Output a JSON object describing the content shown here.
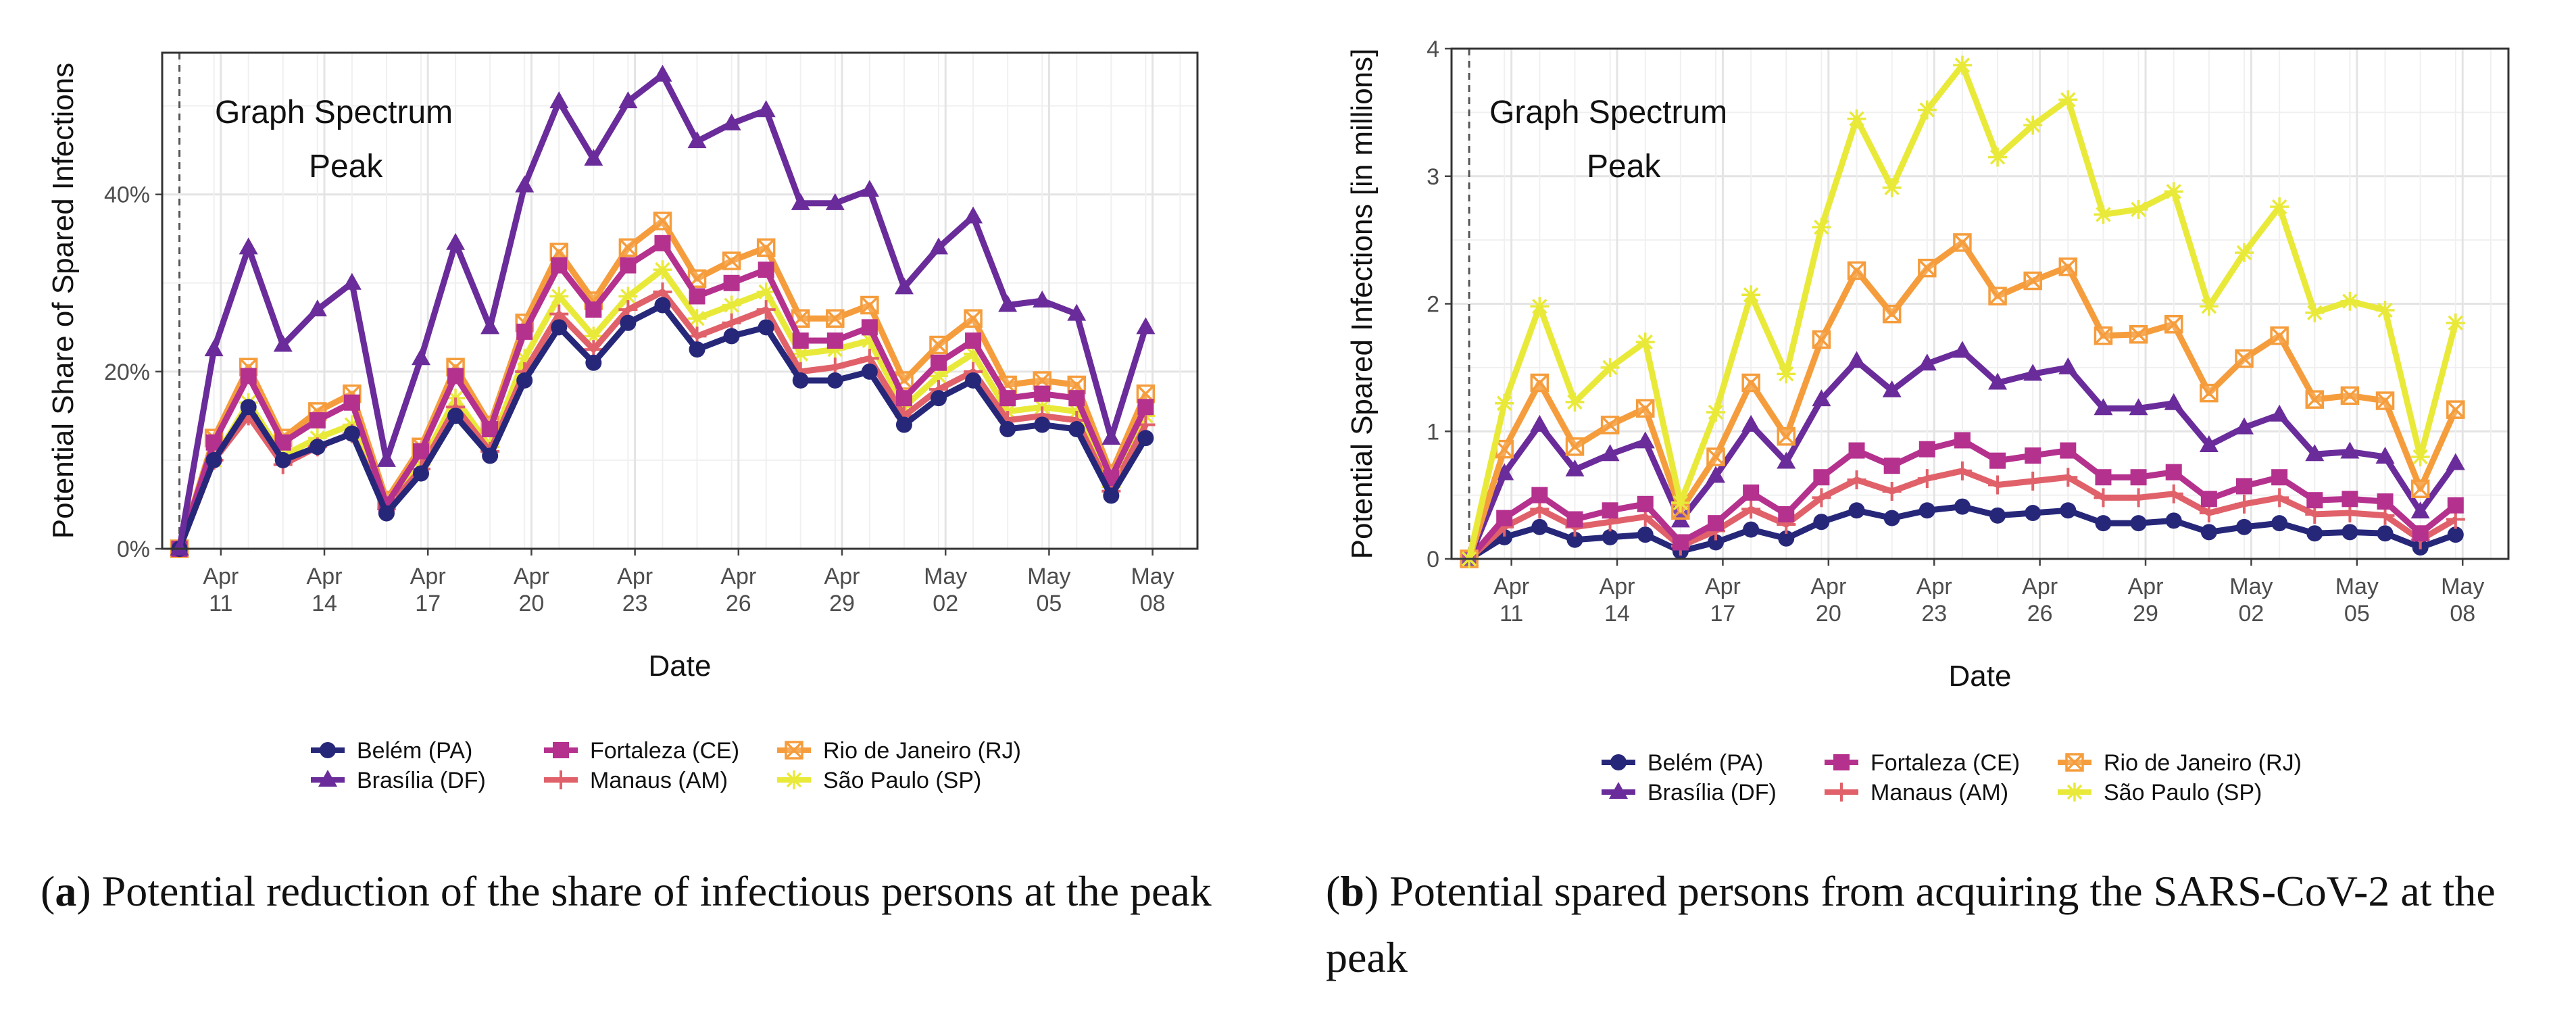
{
  "colors": {
    "belem": "#27277a",
    "brasilia": "#6a2c9a",
    "fortaleza": "#b5318e",
    "manaus": "#e0616a",
    "rio": "#f59d3d",
    "saopaulo": "#e9e93a"
  },
  "chart_data": [
    {
      "type": "line",
      "xlabel": "Date",
      "ylabel": "Potential Share of Spared Infections",
      "x_ticks": [
        "Apr 11",
        "Apr 14",
        "Apr 17",
        "Apr 20",
        "Apr 23",
        "Apr 26",
        "Apr 29",
        "May 02",
        "May 05",
        "May 08"
      ],
      "y_ticks": [
        "0%",
        "20%",
        "40%"
      ],
      "ylim": [
        0,
        0.56
      ],
      "annotation": [
        "Graph Spectrum",
        "Peak"
      ],
      "x": [
        9.8,
        10.8,
        11.8,
        12.8,
        13.8,
        14.8,
        15.8,
        16.8,
        17.8,
        18.8,
        19.8,
        20.8,
        21.8,
        22.8,
        23.8,
        24.8,
        25.8,
        26.8,
        27.8,
        28.8,
        29.8,
        30.8,
        31.8,
        32.8,
        33.8,
        34.8,
        35.8,
        36.8,
        37.8,
        38.8
      ],
      "series": [
        {
          "name": "Belém (PA)",
          "key": "belem",
          "marker": "circle",
          "values": [
            0,
            0.1,
            0.16,
            0.1,
            0.115,
            0.13,
            0.04,
            0.085,
            0.15,
            0.105,
            0.19,
            0.25,
            0.21,
            0.255,
            0.275,
            0.225,
            0.24,
            0.25,
            0.19,
            0.19,
            0.2,
            0.14,
            0.17,
            0.19,
            0.135,
            0.14,
            0.135,
            0.06,
            0.125,
            null
          ]
        },
        {
          "name": "Brasília (DF)",
          "key": "brasilia",
          "marker": "triangle",
          "values": [
            0,
            0.225,
            0.34,
            0.23,
            0.27,
            0.3,
            0.1,
            0.215,
            0.345,
            0.25,
            0.41,
            0.505,
            0.44,
            0.505,
            0.535,
            0.46,
            0.48,
            0.495,
            0.39,
            0.39,
            0.405,
            0.295,
            0.34,
            0.375,
            0.275,
            0.28,
            0.265,
            0.125,
            0.25,
            null
          ]
        },
        {
          "name": "Fortaleza (CE)",
          "key": "fortaleza",
          "marker": "square",
          "values": [
            0,
            0.12,
            0.195,
            0.12,
            0.145,
            0.165,
            0.05,
            0.11,
            0.195,
            0.135,
            0.245,
            0.32,
            0.27,
            0.32,
            0.345,
            0.285,
            0.3,
            0.315,
            0.235,
            0.235,
            0.25,
            0.17,
            0.21,
            0.235,
            0.17,
            0.175,
            0.17,
            0.08,
            0.16,
            null
          ]
        },
        {
          "name": "Manaus (AM)",
          "key": "manaus",
          "marker": "plus",
          "values": [
            0,
            0.1,
            0.15,
            0.095,
            0.115,
            0.13,
            0.045,
            0.09,
            0.16,
            0.11,
            0.2,
            0.265,
            0.225,
            0.27,
            0.29,
            0.24,
            0.255,
            0.27,
            0.2,
            0.205,
            0.215,
            0.15,
            0.18,
            0.2,
            0.145,
            0.15,
            0.145,
            0.065,
            0.14,
            null
          ]
        },
        {
          "name": "Rio de Janeiro (RJ)",
          "key": "rio",
          "marker": "sqx",
          "values": [
            0,
            0.125,
            0.205,
            0.125,
            0.155,
            0.175,
            0.055,
            0.115,
            0.205,
            0.14,
            0.255,
            0.335,
            0.28,
            0.34,
            0.37,
            0.305,
            0.325,
            0.34,
            0.26,
            0.26,
            0.275,
            0.19,
            0.23,
            0.26,
            0.185,
            0.19,
            0.185,
            0.085,
            0.175,
            null
          ]
        },
        {
          "name": "São Paulo (SP)",
          "key": "saopaulo",
          "marker": "star",
          "values": [
            0,
            0.1,
            0.165,
            0.105,
            0.125,
            0.14,
            0.045,
            0.095,
            0.17,
            0.115,
            0.215,
            0.285,
            0.24,
            0.285,
            0.315,
            0.26,
            0.275,
            0.29,
            0.22,
            0.225,
            0.235,
            0.16,
            0.195,
            0.22,
            0.155,
            0.16,
            0.155,
            0.07,
            0.15,
            null
          ]
        }
      ]
    },
    {
      "type": "line",
      "xlabel": "Date",
      "ylabel": "Potential Spared Infections [in millions]",
      "x_ticks": [
        "Apr 11",
        "Apr 14",
        "Apr 17",
        "Apr 20",
        "Apr 23",
        "Apr 26",
        "Apr 29",
        "May 02",
        "May 05",
        "May 08"
      ],
      "y_ticks": [
        "0",
        "1",
        "2",
        "3",
        "4"
      ],
      "ylim": [
        0,
        4.0
      ],
      "annotation": [
        "Graph Spectrum",
        "Peak"
      ],
      "x": [
        9.8,
        10.8,
        11.8,
        12.8,
        13.8,
        14.8,
        15.8,
        16.8,
        17.8,
        18.8,
        19.8,
        20.8,
        21.8,
        22.8,
        23.8,
        24.8,
        25.8,
        26.8,
        27.8,
        28.8,
        29.8,
        30.8,
        31.8,
        32.8,
        33.8,
        34.8,
        35.8,
        36.8,
        37.8,
        38.8
      ],
      "series": [
        {
          "name": "Belém (PA)",
          "key": "belem",
          "marker": "circle",
          "values": [
            0,
            0.17,
            0.25,
            0.15,
            0.17,
            0.19,
            0.06,
            0.13,
            0.23,
            0.16,
            0.29,
            0.38,
            0.32,
            0.38,
            0.41,
            0.34,
            0.36,
            0.38,
            0.28,
            0.28,
            0.3,
            0.21,
            0.25,
            0.28,
            0.2,
            0.21,
            0.2,
            0.09,
            0.19,
            null
          ]
        },
        {
          "name": "Brasília (DF)",
          "key": "brasilia",
          "marker": "triangle",
          "values": [
            0,
            0.67,
            1.05,
            0.7,
            0.82,
            0.92,
            0.3,
            0.65,
            1.05,
            0.76,
            1.25,
            1.55,
            1.32,
            1.53,
            1.63,
            1.38,
            1.45,
            1.5,
            1.18,
            1.18,
            1.22,
            0.89,
            1.03,
            1.13,
            0.82,
            0.84,
            0.8,
            0.37,
            0.75,
            null
          ]
        },
        {
          "name": "Fortaleza (CE)",
          "key": "fortaleza",
          "marker": "square",
          "values": [
            0,
            0.32,
            0.5,
            0.31,
            0.38,
            0.43,
            0.13,
            0.28,
            0.52,
            0.35,
            0.64,
            0.85,
            0.73,
            0.86,
            0.93,
            0.77,
            0.81,
            0.85,
            0.64,
            0.64,
            0.68,
            0.47,
            0.57,
            0.64,
            0.46,
            0.47,
            0.45,
            0.2,
            0.42,
            null
          ]
        },
        {
          "name": "Manaus (AM)",
          "key": "manaus",
          "marker": "plus",
          "values": [
            0,
            0.25,
            0.39,
            0.25,
            0.29,
            0.33,
            0.1,
            0.22,
            0.39,
            0.27,
            0.48,
            0.62,
            0.53,
            0.63,
            0.69,
            0.58,
            0.61,
            0.64,
            0.48,
            0.48,
            0.51,
            0.36,
            0.43,
            0.48,
            0.35,
            0.36,
            0.34,
            0.15,
            0.31,
            null
          ]
        },
        {
          "name": "Rio de Janeiro (RJ)",
          "key": "rio",
          "marker": "sqx",
          "values": [
            0,
            0.86,
            1.38,
            0.88,
            1.05,
            1.18,
            0.38,
            0.8,
            1.38,
            0.96,
            1.72,
            2.26,
            1.92,
            2.28,
            2.48,
            2.06,
            2.18,
            2.29,
            1.75,
            1.76,
            1.84,
            1.3,
            1.57,
            1.75,
            1.25,
            1.28,
            1.24,
            0.55,
            1.17,
            null
          ]
        },
        {
          "name": "São Paulo (SP)",
          "key": "saopaulo",
          "marker": "star",
          "values": [
            0,
            1.22,
            1.98,
            1.23,
            1.5,
            1.7,
            0.44,
            1.15,
            2.07,
            1.45,
            2.6,
            3.45,
            2.91,
            3.52,
            3.87,
            3.15,
            3.4,
            3.6,
            2.7,
            2.74,
            2.88,
            1.98,
            2.4,
            2.76,
            1.93,
            2.02,
            1.95,
            0.8,
            1.85,
            null
          ]
        }
      ]
    }
  ],
  "captions": [
    {
      "label": "a",
      "text": "Potential reduction of the share of infectious persons at the peak"
    },
    {
      "label": "b",
      "text": "Potential spared persons from acquiring the SARS-CoV-2 at the peak"
    }
  ]
}
